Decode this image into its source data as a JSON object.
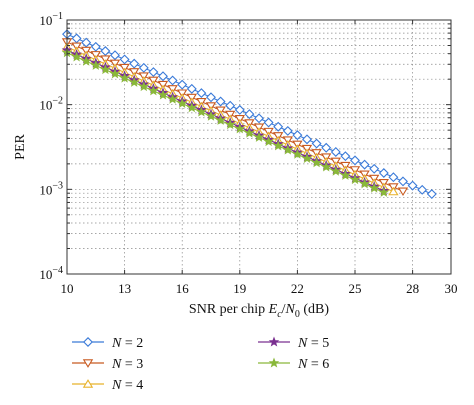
{
  "chart_data": {
    "type": "line",
    "scale": "log-y",
    "xlabel": "SNR per chip E_c/N_0 (dB)",
    "ylabel": "PER",
    "xlim": [
      10,
      30
    ],
    "ylim": [
      0.0001,
      0.1
    ],
    "x_ticks": [
      10,
      13,
      16,
      19,
      22,
      25,
      28,
      30
    ],
    "x_tick_labels": [
      "10",
      "13",
      "16",
      "19",
      "22",
      "25",
      "28",
      "30"
    ],
    "y_tick_labels": [
      {
        "value": 0.1,
        "base": "10",
        "exp": "−1"
      },
      {
        "value": 0.01,
        "base": "10",
        "exp": "−2"
      },
      {
        "value": 0.001,
        "base": "10",
        "exp": "−3"
      },
      {
        "value": 0.0001,
        "base": "10",
        "exp": "−4"
      }
    ],
    "grid": "major-and-minor-dotted",
    "legend_position": "bottom",
    "series": [
      {
        "name": "N = 2",
        "n_label": "2",
        "color": "#3a7ad8",
        "marker": "diamond",
        "x_start": 10,
        "x_end": 29,
        "step": 0.5,
        "y_start": 0.068,
        "y_end": 0.00088
      },
      {
        "name": "N = 3",
        "n_label": "3",
        "color": "#c85a20",
        "marker": "triangle-down",
        "x_start": 10,
        "x_end": 27.5,
        "step": 0.5,
        "y_start": 0.055,
        "y_end": 0.00095
      },
      {
        "name": "N = 4",
        "n_label": "4",
        "color": "#e8b22a",
        "marker": "triangle-up",
        "x_start": 10,
        "x_end": 27,
        "step": 0.5,
        "y_start": 0.048,
        "y_end": 0.00094
      },
      {
        "name": "N = 5",
        "n_label": "5",
        "color": "#7a3090",
        "marker": "star",
        "x_start": 10,
        "x_end": 26.5,
        "step": 0.5,
        "y_start": 0.044,
        "y_end": 0.00096
      },
      {
        "name": "N = 6",
        "n_label": "6",
        "color": "#8ab83a",
        "marker": "star",
        "x_start": 10,
        "x_end": 26.5,
        "step": 0.5,
        "y_start": 0.041,
        "y_end": 0.00092
      }
    ]
  }
}
